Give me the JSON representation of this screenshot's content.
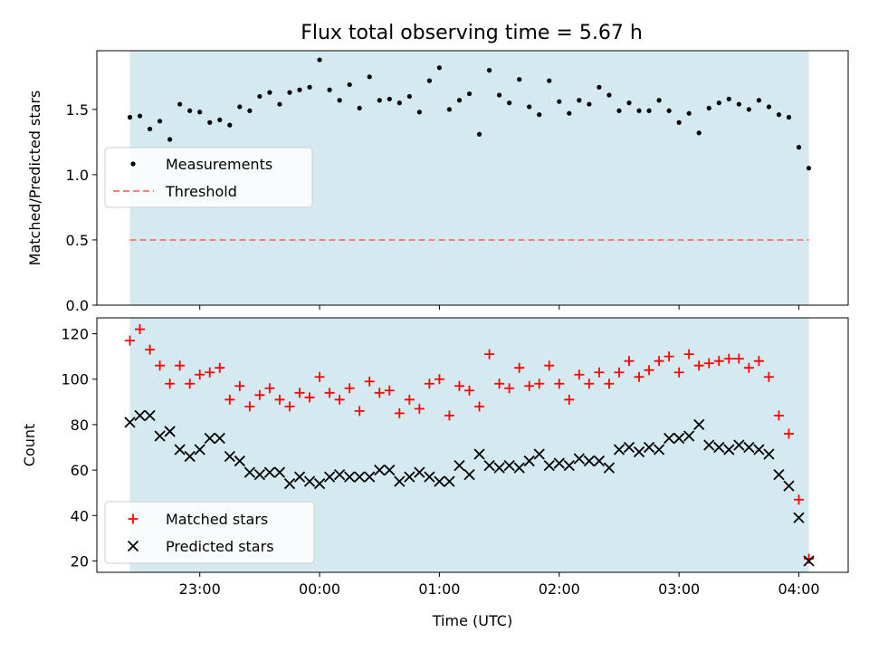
{
  "title": "Flux total observing time = 5.67 h",
  "chart_data": [
    {
      "type": "scatter",
      "ylabel": "Matched/Predicted stars",
      "ylim": [
        0,
        1.95
      ],
      "yticks": [
        "0.0",
        "0.5",
        "1.0",
        "1.5"
      ],
      "threshold": 0.5,
      "shaded_span": [
        "22:25",
        "04:05"
      ],
      "legend": {
        "placement": "center-left",
        "entries": [
          "Measurements",
          "Threshold"
        ]
      },
      "series": [
        {
          "name": "Measurements",
          "x": [
            "22:25",
            "22:30",
            "22:35",
            "22:40",
            "22:45",
            "22:50",
            "22:55",
            "23:00",
            "23:05",
            "23:10",
            "23:15",
            "23:20",
            "23:25",
            "23:30",
            "23:35",
            "23:40",
            "23:45",
            "23:50",
            "23:55",
            "00:00",
            "00:05",
            "00:10",
            "00:15",
            "00:20",
            "00:25",
            "00:30",
            "00:35",
            "00:40",
            "00:45",
            "00:50",
            "00:55",
            "01:00",
            "01:05",
            "01:10",
            "01:15",
            "01:20",
            "01:25",
            "01:30",
            "01:35",
            "01:40",
            "01:45",
            "01:50",
            "01:55",
            "02:00",
            "02:05",
            "02:10",
            "02:15",
            "02:20",
            "02:25",
            "02:30",
            "02:35",
            "02:40",
            "02:45",
            "02:50",
            "02:55",
            "03:00",
            "03:05",
            "03:10",
            "03:15",
            "03:20",
            "03:25",
            "03:30",
            "03:35",
            "03:40",
            "03:45",
            "03:50",
            "03:55",
            "04:00",
            "04:05"
          ],
          "y": [
            1.44,
            1.45,
            1.35,
            1.41,
            1.27,
            1.54,
            1.49,
            1.48,
            1.4,
            1.42,
            1.38,
            1.52,
            1.49,
            1.6,
            1.63,
            1.54,
            1.63,
            1.65,
            1.67,
            1.88,
            1.65,
            1.57,
            1.69,
            1.51,
            1.75,
            1.57,
            1.58,
            1.55,
            1.6,
            1.48,
            1.72,
            1.82,
            1.5,
            1.57,
            1.62,
            1.31,
            1.8,
            1.61,
            1.55,
            1.73,
            1.52,
            1.46,
            1.72,
            1.56,
            1.47,
            1.57,
            1.54,
            1.67,
            1.61,
            1.49,
            1.55,
            1.49,
            1.49,
            1.57,
            1.49,
            1.4,
            1.47,
            1.32,
            1.51,
            1.55,
            1.58,
            1.54,
            1.5,
            1.57,
            1.52,
            1.46,
            1.44,
            1.21,
            1.05
          ]
        },
        {
          "name": "Threshold",
          "y": 0.5
        }
      ]
    },
    {
      "type": "scatter",
      "xlabel": "Time (UTC)",
      "ylabel": "Count",
      "ylim": [
        15,
        127
      ],
      "yticks": [
        "20",
        "40",
        "60",
        "80",
        "100",
        "120"
      ],
      "xticks": [
        "23:00",
        "00:00",
        "01:00",
        "02:00",
        "03:00",
        "04:00"
      ],
      "shaded_span": [
        "22:25",
        "04:05"
      ],
      "legend": {
        "placement": "lower-left",
        "entries": [
          "Matched stars",
          "Predicted stars"
        ]
      },
      "series": [
        {
          "name": "Matched stars",
          "marker": "plus",
          "x": [
            "22:25",
            "22:30",
            "22:35",
            "22:40",
            "22:45",
            "22:50",
            "22:55",
            "23:00",
            "23:05",
            "23:10",
            "23:15",
            "23:20",
            "23:25",
            "23:30",
            "23:35",
            "23:40",
            "23:45",
            "23:50",
            "23:55",
            "00:00",
            "00:05",
            "00:10",
            "00:15",
            "00:20",
            "00:25",
            "00:30",
            "00:35",
            "00:40",
            "00:45",
            "00:50",
            "00:55",
            "01:00",
            "01:05",
            "01:10",
            "01:15",
            "01:20",
            "01:25",
            "01:30",
            "01:35",
            "01:40",
            "01:45",
            "01:50",
            "01:55",
            "02:00",
            "02:05",
            "02:10",
            "02:15",
            "02:20",
            "02:25",
            "02:30",
            "02:35",
            "02:40",
            "02:45",
            "02:50",
            "02:55",
            "03:00",
            "03:05",
            "03:10",
            "03:15",
            "03:20",
            "03:25",
            "03:30",
            "03:35",
            "03:40",
            "03:45",
            "03:50",
            "03:55",
            "04:00",
            "04:05"
          ],
          "y": [
            117,
            122,
            113,
            106,
            98,
            106,
            98,
            102,
            103,
            105,
            91,
            97,
            88,
            93,
            96,
            91,
            88,
            94,
            92,
            101,
            94,
            91,
            96,
            86,
            99,
            94,
            95,
            85,
            91,
            87,
            98,
            100,
            84,
            97,
            95,
            88,
            111,
            98,
            96,
            105,
            97,
            98,
            106,
            98,
            91,
            102,
            98,
            103,
            98,
            103,
            108,
            101,
            104,
            108,
            110,
            103,
            111,
            106,
            107,
            108,
            109,
            109,
            105,
            108,
            101,
            84,
            76,
            47,
            21
          ]
        },
        {
          "name": "Predicted stars",
          "marker": "x",
          "x": [
            "22:25",
            "22:30",
            "22:35",
            "22:40",
            "22:45",
            "22:50",
            "22:55",
            "23:00",
            "23:05",
            "23:10",
            "23:15",
            "23:20",
            "23:25",
            "23:30",
            "23:35",
            "23:40",
            "23:45",
            "23:50",
            "23:55",
            "00:00",
            "00:05",
            "00:10",
            "00:15",
            "00:20",
            "00:25",
            "00:30",
            "00:35",
            "00:40",
            "00:45",
            "00:50",
            "00:55",
            "01:00",
            "01:05",
            "01:10",
            "01:15",
            "01:20",
            "01:25",
            "01:30",
            "01:35",
            "01:40",
            "01:45",
            "01:50",
            "01:55",
            "02:00",
            "02:05",
            "02:10",
            "02:15",
            "02:20",
            "02:25",
            "02:30",
            "02:35",
            "02:40",
            "02:45",
            "02:50",
            "02:55",
            "03:00",
            "03:05",
            "03:10",
            "03:15",
            "03:20",
            "03:25",
            "03:30",
            "03:35",
            "03:40",
            "03:45",
            "03:50",
            "03:55",
            "04:00",
            "04:05"
          ],
          "y": [
            81,
            84,
            84,
            75,
            77,
            69,
            66,
            69,
            74,
            74,
            66,
            64,
            59,
            58,
            59,
            59,
            54,
            57,
            55,
            54,
            57,
            58,
            57,
            57,
            57,
            60,
            60,
            55,
            57,
            59,
            57,
            55,
            55,
            62,
            58,
            67,
            62,
            61,
            62,
            61,
            64,
            67,
            62,
            63,
            62,
            65,
            64,
            64,
            61,
            69,
            70,
            68,
            70,
            69,
            74,
            74,
            75,
            80,
            71,
            70,
            69,
            71,
            70,
            69,
            67,
            58,
            53,
            39,
            20
          ]
        }
      ]
    }
  ],
  "colors": {
    "shade": "#d4eaf0",
    "measurement": "#000000",
    "threshold": "#f08080",
    "matched": "#ff0000",
    "predicted": "#000000"
  }
}
